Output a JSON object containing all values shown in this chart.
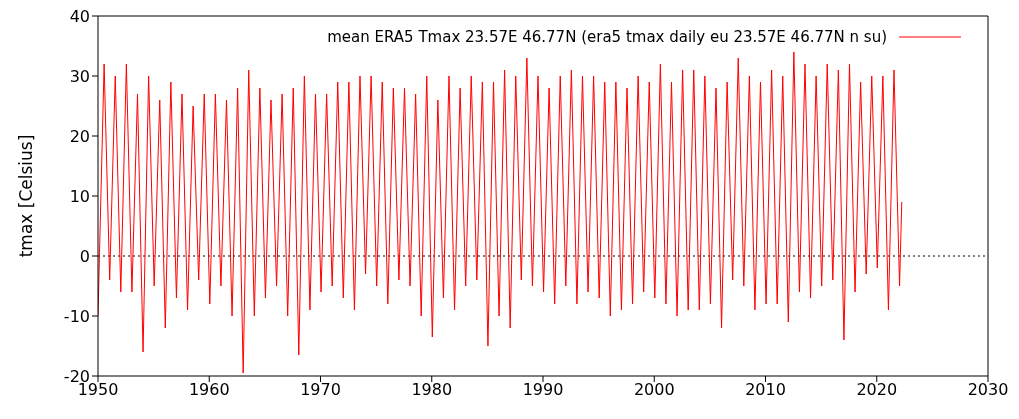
{
  "chart_data": {
    "type": "line",
    "ylabel": "tmax [Celsius]",
    "xlim": [
      1950,
      2030
    ],
    "xticks": [
      1950,
      1960,
      1970,
      1980,
      1990,
      2000,
      2010,
      2020,
      2030
    ],
    "ylim": [
      -20,
      40
    ],
    "yticks": [
      -20,
      -10,
      0,
      10,
      20,
      30,
      40
    ],
    "legend": "top right",
    "grid": false,
    "ref_lines": [
      {
        "axis": "y",
        "value": 0,
        "color": "#000000",
        "line_style": "dotted"
      }
    ],
    "series": [
      {
        "name": "mean ERA5 Tmax 23.57E 46.77N (era5 tmax daily eu 23.57E 46.77N n su)",
        "color": "#ff0000",
        "x": [
          1950.0,
          1950.55,
          1951.05,
          1951.55,
          1952.05,
          1952.55,
          1953.05,
          1953.55,
          1954.05,
          1954.55,
          1955.05,
          1955.55,
          1956.05,
          1956.55,
          1957.05,
          1957.55,
          1958.05,
          1958.55,
          1959.05,
          1959.55,
          1960.05,
          1960.55,
          1961.05,
          1961.55,
          1962.05,
          1962.55,
          1963.05,
          1963.55,
          1964.05,
          1964.55,
          1965.05,
          1965.55,
          1966.05,
          1966.55,
          1967.05,
          1967.55,
          1968.05,
          1968.55,
          1969.05,
          1969.55,
          1970.05,
          1970.55,
          1971.05,
          1971.55,
          1972.05,
          1972.55,
          1973.05,
          1973.55,
          1974.05,
          1974.55,
          1975.05,
          1975.55,
          1976.05,
          1976.55,
          1977.05,
          1977.55,
          1978.05,
          1978.55,
          1979.05,
          1979.55,
          1980.05,
          1980.55,
          1981.05,
          1981.55,
          1982.05,
          1982.55,
          1983.05,
          1983.55,
          1984.05,
          1984.55,
          1985.05,
          1985.55,
          1986.05,
          1986.55,
          1987.05,
          1987.55,
          1988.05,
          1988.55,
          1989.05,
          1989.55,
          1990.05,
          1990.55,
          1991.05,
          1991.55,
          1992.05,
          1992.55,
          1993.05,
          1993.55,
          1994.05,
          1994.55,
          1995.05,
          1995.55,
          1996.05,
          1996.55,
          1997.05,
          1997.55,
          1998.05,
          1998.55,
          1999.05,
          1999.55,
          2000.05,
          2000.55,
          2001.05,
          2001.55,
          2002.05,
          2002.55,
          2003.05,
          2003.55,
          2004.05,
          2004.55,
          2005.05,
          2005.55,
          2006.05,
          2006.55,
          2007.05,
          2007.55,
          2008.05,
          2008.55,
          2009.05,
          2009.55,
          2010.05,
          2010.55,
          2011.05,
          2011.55,
          2012.05,
          2012.55,
          2013.05,
          2013.55,
          2014.05,
          2014.55,
          2015.05,
          2015.55,
          2016.05,
          2016.55,
          2017.05,
          2017.55,
          2018.05,
          2018.55,
          2019.05,
          2019.55,
          2020.05,
          2020.55,
          2021.05,
          2021.55,
          2022.05,
          2022.25
        ],
        "values": [
          -10,
          32,
          -4,
          30,
          -6,
          32,
          -6,
          27,
          -16,
          30,
          -5,
          26,
          -12,
          29,
          -7,
          27,
          -9,
          25,
          -4,
          27,
          -8,
          27,
          -5,
          26,
          -10,
          28,
          -19.5,
          31,
          -10,
          28,
          -7,
          26,
          -5,
          27,
          -10,
          28,
          -16.5,
          30,
          -9,
          27,
          -6,
          27,
          -5,
          29,
          -7,
          29,
          -9,
          30,
          -3,
          30,
          -5,
          29,
          -8,
          28,
          -4,
          28,
          -5,
          27,
          -10,
          30,
          -13.5,
          26,
          -7,
          30,
          -9,
          28,
          -5,
          30,
          -4,
          29,
          -15,
          29,
          -10,
          31,
          -12,
          30,
          -4,
          33,
          -5,
          30,
          -6,
          28,
          -8,
          30,
          -5,
          31,
          -8,
          30,
          -6,
          30,
          -7,
          29,
          -10,
          29,
          -9,
          28,
          -8,
          30,
          -6,
          29,
          -7,
          32,
          -8,
          29,
          -10,
          31,
          -9,
          31,
          -9,
          30,
          -8,
          28,
          -12,
          29,
          -4,
          33,
          -5,
          30,
          -9,
          29,
          -8,
          31,
          -8,
          30,
          -11,
          34,
          -6,
          32,
          -7,
          30,
          -5,
          32,
          -4,
          31,
          -14,
          32,
          -6,
          29,
          -3,
          30,
          -2,
          30,
          -9,
          31,
          -5,
          9
        ]
      }
    ]
  }
}
